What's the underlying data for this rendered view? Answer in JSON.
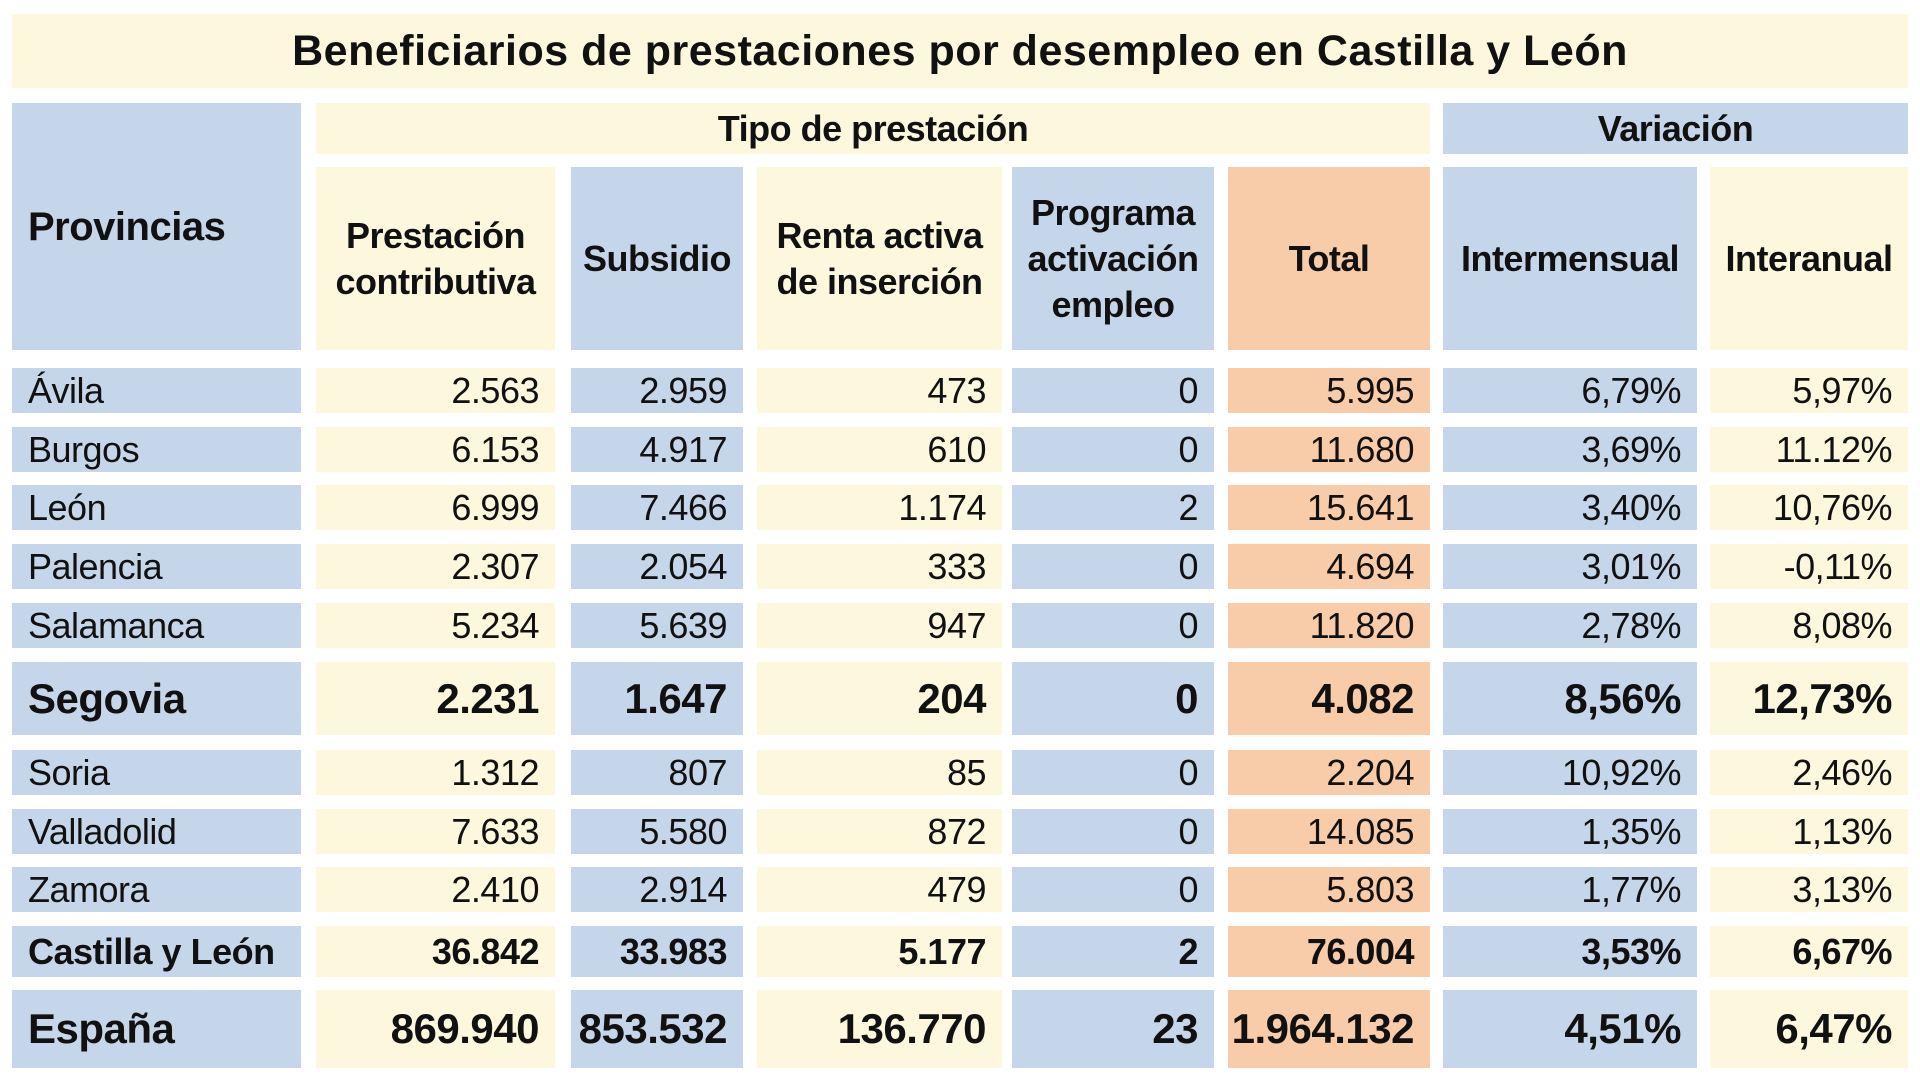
{
  "title": "Beneficiarios de prestaciones por desempleo en Castilla y León",
  "headers": {
    "provincias": "Provincias",
    "tipo_group": "Tipo de prestación",
    "variacion_group": "Variación",
    "columns": [
      "Prestación contributiva",
      "Subsidio",
      "Renta activa de inserción",
      "Programa activación empleo",
      "Total",
      "Intermensual",
      "Interanual"
    ]
  },
  "rows": [
    {
      "name": "Ávila",
      "values": [
        "2.563",
        "2.959",
        "473",
        "0",
        "5.995",
        "6,79%",
        "5,97%"
      ]
    },
    {
      "name": "Burgos",
      "values": [
        "6.153",
        "4.917",
        "610",
        "0",
        "11.680",
        "3,69%",
        "11.12%"
      ]
    },
    {
      "name": "León",
      "values": [
        "6.999",
        "7.466",
        "1.174",
        "2",
        "15.641",
        "3,40%",
        "10,76%"
      ]
    },
    {
      "name": "Palencia",
      "values": [
        "2.307",
        "2.054",
        "333",
        "0",
        "4.694",
        "3,01%",
        "-0,11%"
      ]
    },
    {
      "name": "Salamanca",
      "values": [
        "5.234",
        "5.639",
        "947",
        "0",
        "11.820",
        "2,78%",
        "8,08%"
      ]
    },
    {
      "name": "Segovia",
      "values": [
        "2.231",
        "1.647",
        "204",
        "0",
        "4.082",
        "8,56%",
        "12,73%"
      ]
    },
    {
      "name": "Soria",
      "values": [
        "1.312",
        "807",
        "85",
        "0",
        "2.204",
        "10,92%",
        "2,46%"
      ]
    },
    {
      "name": "Valladolid",
      "values": [
        "7.633",
        "5.580",
        "872",
        "0",
        "14.085",
        "1,35%",
        "1,13%"
      ]
    },
    {
      "name": "Zamora",
      "values": [
        "2.410",
        "2.914",
        "479",
        "0",
        "5.803",
        "1,77%",
        "3,13%"
      ]
    },
    {
      "name": "Castilla y León",
      "values": [
        "36.842",
        "33.983",
        "5.177",
        "2",
        "76.004",
        "3,53%",
        "6,67%"
      ]
    },
    {
      "name": "España",
      "values": [
        "869.940",
        "853.532",
        "136.770",
        "23",
        "1.964.132",
        "4,51%",
        "6,47%"
      ]
    }
  ],
  "colors": {
    "blue": "#c6d6ea",
    "yellow": "#fdf7de",
    "orange": "#f8cba9"
  }
}
